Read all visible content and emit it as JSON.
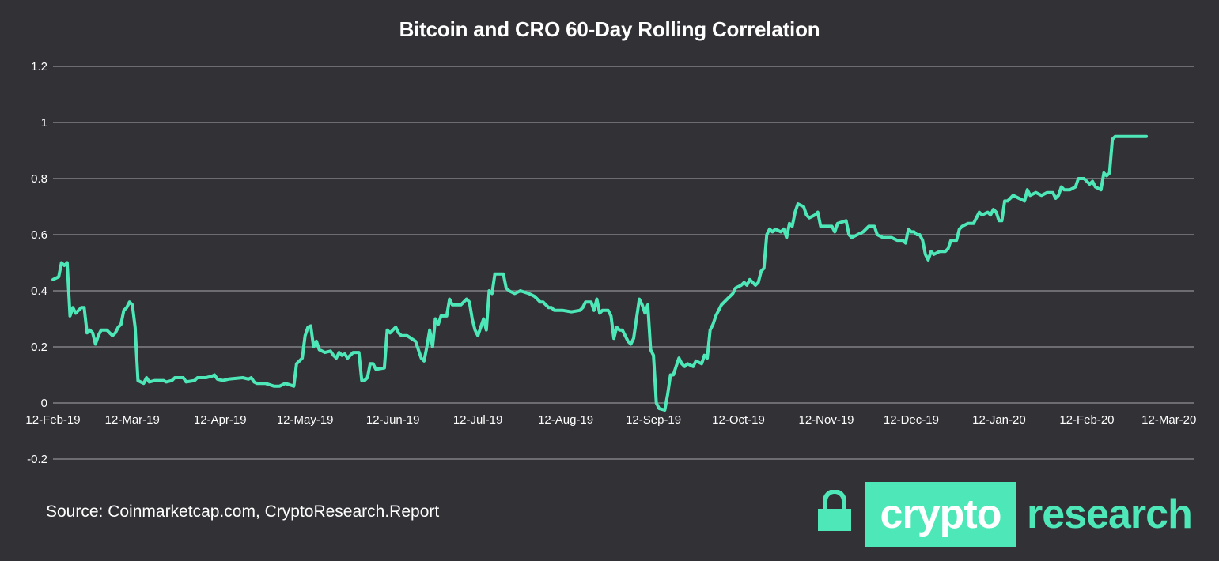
{
  "chart_data": {
    "type": "line",
    "title": "Bitcoin and CRO 60-Day Rolling Correlation",
    "xlabel": "",
    "ylabel": "",
    "x_ticks": [
      "12-Feb-19",
      "12-Mar-19",
      "12-Apr-19",
      "12-May-19",
      "12-Jun-19",
      "12-Jul-19",
      "12-Aug-19",
      "12-Sep-19",
      "12-Oct-19",
      "12-Nov-19",
      "12-Dec-19",
      "12-Jan-20",
      "12-Feb-20",
      "12-Mar-20"
    ],
    "x_range": [
      "2019-02-12",
      "2020-03-21"
    ],
    "y_ticks": [
      "1.2",
      "1",
      "0.8",
      "0.6",
      "0.4",
      "0.2",
      "0",
      "-0.2"
    ],
    "ylim": [
      -0.2,
      1.2
    ],
    "grid": true,
    "legend": "none",
    "line_color": "#4ee8b8",
    "series": [
      {
        "points": [
          [
            "2019-02-12",
            0.44
          ],
          [
            "2019-02-14",
            0.45
          ],
          [
            "2019-02-15",
            0.5
          ],
          [
            "2019-02-16",
            0.49
          ],
          [
            "2019-02-17",
            0.5
          ],
          [
            "2019-02-18",
            0.31
          ],
          [
            "2019-02-19",
            0.34
          ],
          [
            "2019-02-20",
            0.32
          ],
          [
            "2019-02-21",
            0.33
          ],
          [
            "2019-02-22",
            0.34
          ],
          [
            "2019-02-23",
            0.34
          ],
          [
            "2019-02-24",
            0.25
          ],
          [
            "2019-02-25",
            0.26
          ],
          [
            "2019-02-26",
            0.25
          ],
          [
            "2019-02-27",
            0.21
          ],
          [
            "2019-02-28",
            0.24
          ],
          [
            "2019-03-01",
            0.26
          ],
          [
            "2019-03-03",
            0.26
          ],
          [
            "2019-03-05",
            0.24
          ],
          [
            "2019-03-06",
            0.25
          ],
          [
            "2019-03-07",
            0.27
          ],
          [
            "2019-03-08",
            0.28
          ],
          [
            "2019-03-09",
            0.33
          ],
          [
            "2019-03-10",
            0.34
          ],
          [
            "2019-03-11",
            0.36
          ],
          [
            "2019-03-12",
            0.35
          ],
          [
            "2019-03-13",
            0.27
          ],
          [
            "2019-03-14",
            0.08
          ],
          [
            "2019-03-15",
            0.075
          ],
          [
            "2019-03-16",
            0.07
          ],
          [
            "2019-03-17",
            0.09
          ],
          [
            "2019-03-18",
            0.075
          ],
          [
            "2019-03-20",
            0.08
          ],
          [
            "2019-03-23",
            0.08
          ],
          [
            "2019-03-24",
            0.075
          ],
          [
            "2019-03-26",
            0.08
          ],
          [
            "2019-03-27",
            0.09
          ],
          [
            "2019-03-30",
            0.09
          ],
          [
            "2019-03-31",
            0.075
          ],
          [
            "2019-04-03",
            0.08
          ],
          [
            "2019-04-04",
            0.09
          ],
          [
            "2019-04-07",
            0.09
          ],
          [
            "2019-04-09",
            0.095
          ],
          [
            "2019-04-10",
            0.1
          ],
          [
            "2019-04-11",
            0.085
          ],
          [
            "2019-04-13",
            0.08
          ],
          [
            "2019-04-15",
            0.085
          ],
          [
            "2019-04-20",
            0.09
          ],
          [
            "2019-04-22",
            0.085
          ],
          [
            "2019-04-23",
            0.09
          ],
          [
            "2019-04-24",
            0.075
          ],
          [
            "2019-04-25",
            0.07
          ],
          [
            "2019-04-28",
            0.07
          ],
          [
            "2019-05-01",
            0.06
          ],
          [
            "2019-05-03",
            0.06
          ],
          [
            "2019-05-05",
            0.07
          ],
          [
            "2019-05-08",
            0.06
          ],
          [
            "2019-05-09",
            0.14
          ],
          [
            "2019-05-10",
            0.15
          ],
          [
            "2019-05-11",
            0.16
          ],
          [
            "2019-05-12",
            0.24
          ],
          [
            "2019-05-13",
            0.27
          ],
          [
            "2019-05-14",
            0.275
          ],
          [
            "2019-05-15",
            0.2
          ],
          [
            "2019-05-16",
            0.22
          ],
          [
            "2019-05-17",
            0.19
          ],
          [
            "2019-05-19",
            0.18
          ],
          [
            "2019-05-21",
            0.185
          ],
          [
            "2019-05-22",
            0.17
          ],
          [
            "2019-05-23",
            0.16
          ],
          [
            "2019-05-24",
            0.18
          ],
          [
            "2019-05-25",
            0.17
          ],
          [
            "2019-05-26",
            0.175
          ],
          [
            "2019-05-27",
            0.16
          ],
          [
            "2019-05-29",
            0.18
          ],
          [
            "2019-05-31",
            0.18
          ],
          [
            "2019-06-01",
            0.08
          ],
          [
            "2019-06-02",
            0.08
          ],
          [
            "2019-06-03",
            0.09
          ],
          [
            "2019-06-04",
            0.14
          ],
          [
            "2019-06-05",
            0.14
          ],
          [
            "2019-06-06",
            0.12
          ],
          [
            "2019-06-09",
            0.125
          ],
          [
            "2019-06-10",
            0.26
          ],
          [
            "2019-06-11",
            0.25
          ],
          [
            "2019-06-13",
            0.27
          ],
          [
            "2019-06-14",
            0.25
          ],
          [
            "2019-06-15",
            0.24
          ],
          [
            "2019-06-17",
            0.24
          ],
          [
            "2019-06-20",
            0.22
          ],
          [
            "2019-06-21",
            0.19
          ],
          [
            "2019-06-22",
            0.16
          ],
          [
            "2019-06-23",
            0.15
          ],
          [
            "2019-06-24",
            0.2
          ],
          [
            "2019-06-25",
            0.26
          ],
          [
            "2019-06-26",
            0.2
          ],
          [
            "2019-06-27",
            0.3
          ],
          [
            "2019-06-28",
            0.28
          ],
          [
            "2019-06-29",
            0.31
          ],
          [
            "2019-07-01",
            0.31
          ],
          [
            "2019-07-02",
            0.37
          ],
          [
            "2019-07-03",
            0.35
          ],
          [
            "2019-07-06",
            0.35
          ],
          [
            "2019-07-08",
            0.37
          ],
          [
            "2019-07-09",
            0.36
          ],
          [
            "2019-07-10",
            0.3
          ],
          [
            "2019-07-11",
            0.26
          ],
          [
            "2019-07-12",
            0.24
          ],
          [
            "2019-07-13",
            0.27
          ],
          [
            "2019-07-14",
            0.3
          ],
          [
            "2019-07-15",
            0.26
          ],
          [
            "2019-07-16",
            0.4
          ],
          [
            "2019-07-17",
            0.39
          ],
          [
            "2019-07-18",
            0.46
          ],
          [
            "2019-07-21",
            0.46
          ],
          [
            "2019-07-22",
            0.41
          ],
          [
            "2019-07-23",
            0.4
          ],
          [
            "2019-07-25",
            0.39
          ],
          [
            "2019-07-27",
            0.4
          ],
          [
            "2019-07-30",
            0.39
          ],
          [
            "2019-08-01",
            0.38
          ],
          [
            "2019-08-02",
            0.37
          ],
          [
            "2019-08-03",
            0.36
          ],
          [
            "2019-08-04",
            0.36
          ],
          [
            "2019-08-06",
            0.34
          ],
          [
            "2019-08-07",
            0.34
          ],
          [
            "2019-08-08",
            0.33
          ],
          [
            "2019-08-11",
            0.33
          ],
          [
            "2019-08-14",
            0.325
          ],
          [
            "2019-08-17",
            0.33
          ],
          [
            "2019-08-18",
            0.34
          ],
          [
            "2019-08-19",
            0.36
          ],
          [
            "2019-08-21",
            0.36
          ],
          [
            "2019-08-22",
            0.33
          ],
          [
            "2019-08-23",
            0.37
          ],
          [
            "2019-08-24",
            0.32
          ],
          [
            "2019-08-25",
            0.33
          ],
          [
            "2019-08-27",
            0.33
          ],
          [
            "2019-08-28",
            0.31
          ],
          [
            "2019-08-29",
            0.23
          ],
          [
            "2019-08-30",
            0.27
          ],
          [
            "2019-08-31",
            0.26
          ],
          [
            "2019-09-01",
            0.26
          ],
          [
            "2019-09-03",
            0.22
          ],
          [
            "2019-09-04",
            0.21
          ],
          [
            "2019-09-05",
            0.23
          ],
          [
            "2019-09-07",
            0.37
          ],
          [
            "2019-09-08",
            0.35
          ],
          [
            "2019-09-09",
            0.32
          ],
          [
            "2019-09-10",
            0.35
          ],
          [
            "2019-09-11",
            0.19
          ],
          [
            "2019-09-12",
            0.17
          ],
          [
            "2019-09-13",
            0.0
          ],
          [
            "2019-09-14",
            -0.02
          ],
          [
            "2019-09-16",
            -0.025
          ],
          [
            "2019-09-17",
            0.03
          ],
          [
            "2019-09-18",
            0.1
          ],
          [
            "2019-09-19",
            0.1
          ],
          [
            "2019-09-20",
            0.13
          ],
          [
            "2019-09-21",
            0.16
          ],
          [
            "2019-09-22",
            0.14
          ],
          [
            "2019-09-23",
            0.13
          ],
          [
            "2019-09-24",
            0.14
          ],
          [
            "2019-09-26",
            0.13
          ],
          [
            "2019-09-27",
            0.15
          ],
          [
            "2019-09-29",
            0.14
          ],
          [
            "2019-09-30",
            0.17
          ],
          [
            "2019-10-01",
            0.16
          ],
          [
            "2019-10-02",
            0.26
          ],
          [
            "2019-10-03",
            0.28
          ],
          [
            "2019-10-04",
            0.31
          ],
          [
            "2019-10-06",
            0.35
          ],
          [
            "2019-10-08",
            0.37
          ],
          [
            "2019-10-10",
            0.39
          ],
          [
            "2019-10-11",
            0.41
          ],
          [
            "2019-10-13",
            0.42
          ],
          [
            "2019-10-14",
            0.43
          ],
          [
            "2019-10-15",
            0.42
          ],
          [
            "2019-10-16",
            0.44
          ],
          [
            "2019-10-18",
            0.42
          ],
          [
            "2019-10-19",
            0.43
          ],
          [
            "2019-10-20",
            0.47
          ],
          [
            "2019-10-21",
            0.48
          ],
          [
            "2019-10-22",
            0.6
          ],
          [
            "2019-10-23",
            0.62
          ],
          [
            "2019-10-24",
            0.61
          ],
          [
            "2019-10-25",
            0.62
          ],
          [
            "2019-10-27",
            0.61
          ],
          [
            "2019-10-28",
            0.62
          ],
          [
            "2019-10-29",
            0.59
          ],
          [
            "2019-10-30",
            0.64
          ],
          [
            "2019-10-31",
            0.63
          ],
          [
            "2019-11-01",
            0.68
          ],
          [
            "2019-11-02",
            0.71
          ],
          [
            "2019-11-04",
            0.7
          ],
          [
            "2019-11-05",
            0.67
          ],
          [
            "2019-11-06",
            0.66
          ],
          [
            "2019-11-08",
            0.67
          ],
          [
            "2019-11-09",
            0.68
          ],
          [
            "2019-11-10",
            0.63
          ],
          [
            "2019-11-12",
            0.63
          ],
          [
            "2019-11-14",
            0.63
          ],
          [
            "2019-11-15",
            0.61
          ],
          [
            "2019-11-16",
            0.64
          ],
          [
            "2019-11-19",
            0.65
          ],
          [
            "2019-11-20",
            0.6
          ],
          [
            "2019-11-21",
            0.59
          ],
          [
            "2019-11-23",
            0.6
          ],
          [
            "2019-11-25",
            0.61
          ],
          [
            "2019-11-27",
            0.63
          ],
          [
            "2019-11-29",
            0.63
          ],
          [
            "2019-11-30",
            0.6
          ],
          [
            "2019-12-02",
            0.59
          ],
          [
            "2019-12-05",
            0.59
          ],
          [
            "2019-12-07",
            0.58
          ],
          [
            "2019-12-09",
            0.58
          ],
          [
            "2019-12-10",
            0.57
          ],
          [
            "2019-12-11",
            0.62
          ],
          [
            "2019-12-12",
            0.61
          ],
          [
            "2019-12-13",
            0.61
          ],
          [
            "2019-12-14",
            0.6
          ],
          [
            "2019-12-15",
            0.6
          ],
          [
            "2019-12-16",
            0.58
          ],
          [
            "2019-12-17",
            0.53
          ],
          [
            "2019-12-18",
            0.51
          ],
          [
            "2019-12-19",
            0.54
          ],
          [
            "2019-12-20",
            0.53
          ],
          [
            "2019-12-22",
            0.54
          ],
          [
            "2019-12-24",
            0.54
          ],
          [
            "2019-12-25",
            0.55
          ],
          [
            "2019-12-26",
            0.58
          ],
          [
            "2019-12-28",
            0.58
          ],
          [
            "2019-12-29",
            0.62
          ],
          [
            "2019-12-30",
            0.63
          ],
          [
            "2020-01-01",
            0.64
          ],
          [
            "2020-01-03",
            0.64
          ],
          [
            "2020-01-04",
            0.66
          ],
          [
            "2020-01-05",
            0.68
          ],
          [
            "2020-01-06",
            0.67
          ],
          [
            "2020-01-08",
            0.68
          ],
          [
            "2020-01-09",
            0.67
          ],
          [
            "2020-01-10",
            0.69
          ],
          [
            "2020-01-11",
            0.68
          ],
          [
            "2020-01-12",
            0.65
          ],
          [
            "2020-01-13",
            0.65
          ],
          [
            "2020-01-14",
            0.72
          ],
          [
            "2020-01-15",
            0.72
          ],
          [
            "2020-01-17",
            0.74
          ],
          [
            "2020-01-19",
            0.73
          ],
          [
            "2020-01-21",
            0.72
          ],
          [
            "2020-01-22",
            0.76
          ],
          [
            "2020-01-23",
            0.74
          ],
          [
            "2020-01-25",
            0.75
          ],
          [
            "2020-01-27",
            0.74
          ],
          [
            "2020-01-29",
            0.75
          ],
          [
            "2020-01-31",
            0.75
          ],
          [
            "2020-02-01",
            0.73
          ],
          [
            "2020-02-02",
            0.74
          ],
          [
            "2020-02-03",
            0.77
          ],
          [
            "2020-02-04",
            0.76
          ],
          [
            "2020-02-06",
            0.76
          ],
          [
            "2020-02-08",
            0.77
          ],
          [
            "2020-02-09",
            0.8
          ],
          [
            "2020-02-11",
            0.8
          ],
          [
            "2020-02-12",
            0.79
          ],
          [
            "2020-02-13",
            0.78
          ],
          [
            "2020-02-14",
            0.79
          ],
          [
            "2020-02-15",
            0.77
          ],
          [
            "2020-02-17",
            0.76
          ],
          [
            "2020-02-18",
            0.82
          ],
          [
            "2020-02-19",
            0.81
          ],
          [
            "2020-02-20",
            0.82
          ],
          [
            "2020-02-21",
            0.94
          ],
          [
            "2020-02-22",
            0.95
          ],
          [
            "2020-02-24",
            0.95
          ],
          [
            "2020-02-26",
            0.95
          ],
          [
            "2020-02-29",
            0.95
          ],
          [
            "2020-03-02",
            0.95
          ],
          [
            "2020-03-04",
            0.95
          ]
        ]
      }
    ]
  },
  "source_note": "Source: Coinmarketcap.com, CryptoResearch.Report",
  "logo": {
    "icon": "lock-icon",
    "box_text": "crypto",
    "word_text": "research",
    "color": "#4ee8b8"
  }
}
